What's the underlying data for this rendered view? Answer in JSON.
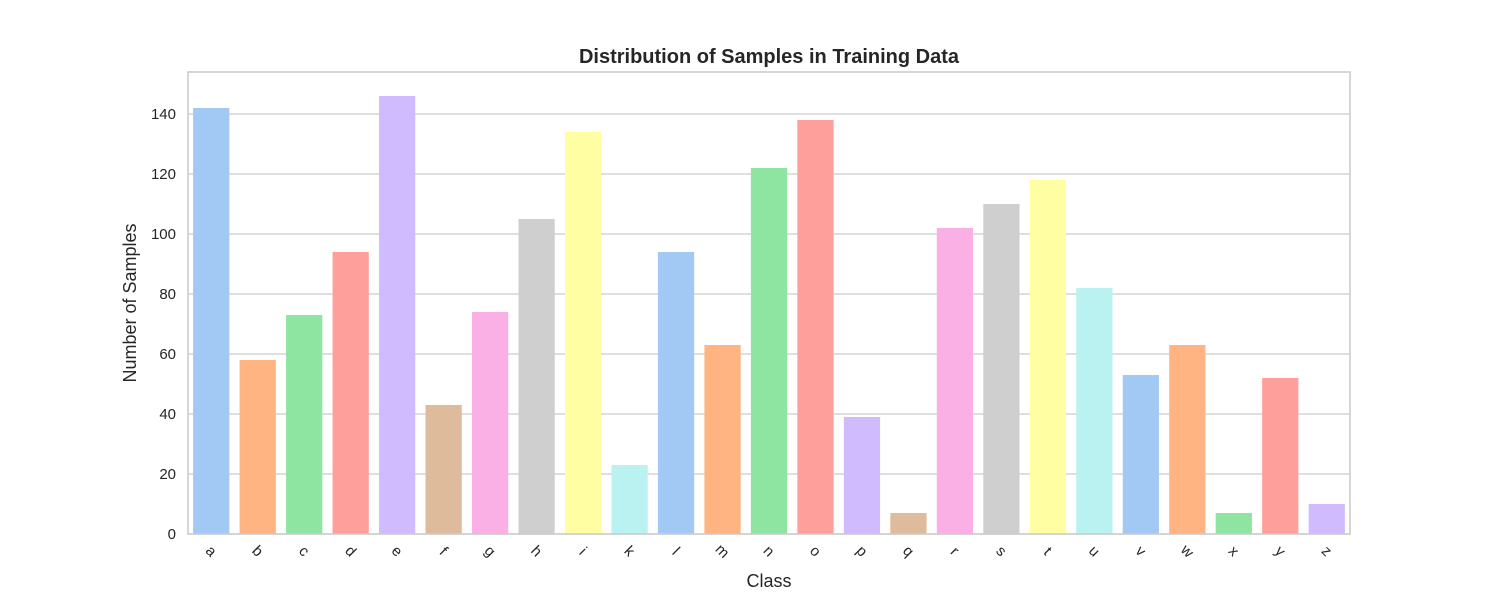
{
  "chart_data": {
    "type": "bar",
    "title": "Distribution of Samples in Training Data",
    "xlabel": "Class",
    "ylabel": "Number of Samples",
    "categories": [
      "a",
      "b",
      "c",
      "d",
      "e",
      "f",
      "g",
      "h",
      "i",
      "k",
      "l",
      "m",
      "n",
      "o",
      "p",
      "q",
      "r",
      "s",
      "t",
      "u",
      "v",
      "w",
      "x",
      "y",
      "z"
    ],
    "values": [
      142,
      58,
      73,
      94,
      146,
      43,
      74,
      105,
      134,
      23,
      94,
      63,
      122,
      138,
      39,
      7,
      102,
      110,
      118,
      82,
      53,
      63,
      7,
      52,
      10
    ],
    "colors": [
      "#a1c9f4",
      "#ffb482",
      "#8de5a1",
      "#ff9f9b",
      "#d0bbff",
      "#debb9b",
      "#fab0e4",
      "#cfcfcf",
      "#fffea3",
      "#b9f2f0",
      "#a1c9f4",
      "#ffb482",
      "#8de5a1",
      "#ff9f9b",
      "#d0bbff",
      "#debb9b",
      "#fab0e4",
      "#cfcfcf",
      "#fffea3",
      "#b9f2f0",
      "#a1c9f4",
      "#ffb482",
      "#8de5a1",
      "#ff9f9b",
      "#d0bbff"
    ],
    "ylim": [
      0,
      154
    ],
    "yticks": [
      0,
      20,
      40,
      60,
      80,
      100,
      120,
      140
    ],
    "grid": "horizontal",
    "legend": "none"
  }
}
